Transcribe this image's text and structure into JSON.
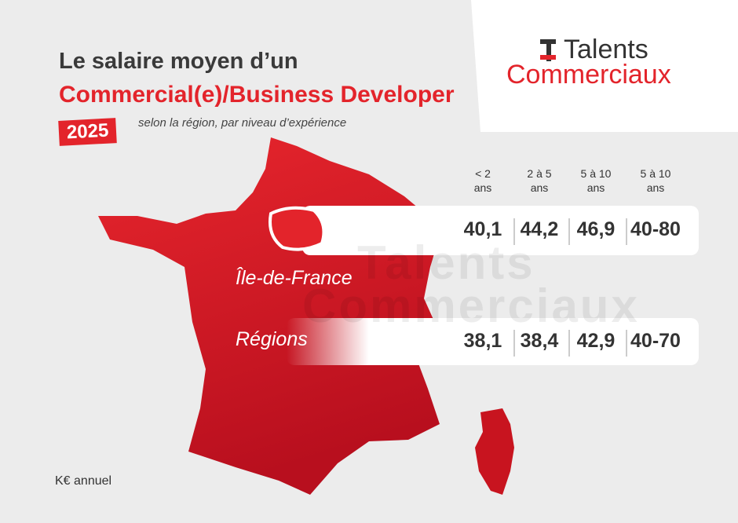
{
  "header": {
    "title_line1": "Le salaire moyen d’un",
    "title_line2": "Commercial(e)/Business Developer",
    "year": "2025",
    "subtitle": "selon la région, par niveau d’expérience"
  },
  "logo": {
    "line1": "Talents",
    "line2": "Commerciaux"
  },
  "table": {
    "columns": [
      {
        "top": "< 2",
        "bottom": "ans"
      },
      {
        "top": "2 à 5",
        "bottom": "ans"
      },
      {
        "top": "5 à 10",
        "bottom": "ans"
      },
      {
        "top": "5 à 10",
        "bottom": "ans"
      }
    ],
    "rows": [
      {
        "label": "Île-de-France",
        "cells": [
          "40,1",
          "44,2",
          "46,9",
          "40-80"
        ]
      },
      {
        "label": "Régions",
        "cells": [
          "38,1",
          "38,4",
          "42,9",
          "40-70"
        ]
      }
    ]
  },
  "unit_note": "K€ annuel"
}
